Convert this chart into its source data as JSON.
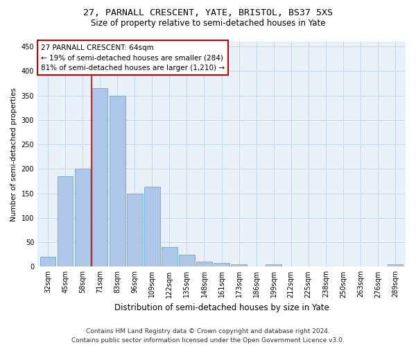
{
  "title1": "27, PARNALL CRESCENT, YATE, BRISTOL, BS37 5XS",
  "title2": "Size of property relative to semi-detached houses in Yate",
  "xlabel": "Distribution of semi-detached houses by size in Yate",
  "ylabel": "Number of semi-detached properties",
  "categories": [
    "32sqm",
    "45sqm",
    "58sqm",
    "71sqm",
    "83sqm",
    "96sqm",
    "109sqm",
    "122sqm",
    "135sqm",
    "148sqm",
    "161sqm",
    "173sqm",
    "186sqm",
    "199sqm",
    "212sqm",
    "225sqm",
    "238sqm",
    "250sqm",
    "263sqm",
    "276sqm",
    "289sqm"
  ],
  "values": [
    20,
    185,
    200,
    365,
    350,
    150,
    163,
    40,
    25,
    10,
    8,
    5,
    1,
    4,
    0,
    0,
    0,
    0,
    0,
    0,
    5
  ],
  "bar_color": "#aec6e8",
  "bar_edge_color": "#7aafd4",
  "vline_x": 2.5,
  "annotation_line1": "27 PARNALL CRESCENT: 64sqm",
  "annotation_line2": "← 19% of semi-detached houses are smaller (284)",
  "annotation_line3": "81% of semi-detached houses are larger (1,210) →",
  "annotation_box_color": "#ffffff",
  "annotation_box_edge": "#cc0000",
  "vline_color": "#cc0000",
  "grid_color": "#c8d8e8",
  "background_color": "#e8f0f8",
  "footer1": "Contains HM Land Registry data © Crown copyright and database right 2024.",
  "footer2": "Contains public sector information licensed under the Open Government Licence v3.0.",
  "ylim": [
    0,
    460
  ],
  "title1_fontsize": 9.5,
  "title2_fontsize": 8.5,
  "xlabel_fontsize": 8.5,
  "ylabel_fontsize": 7.5,
  "tick_fontsize": 7,
  "annotation_fontsize": 7.5,
  "footer_fontsize": 6.5
}
